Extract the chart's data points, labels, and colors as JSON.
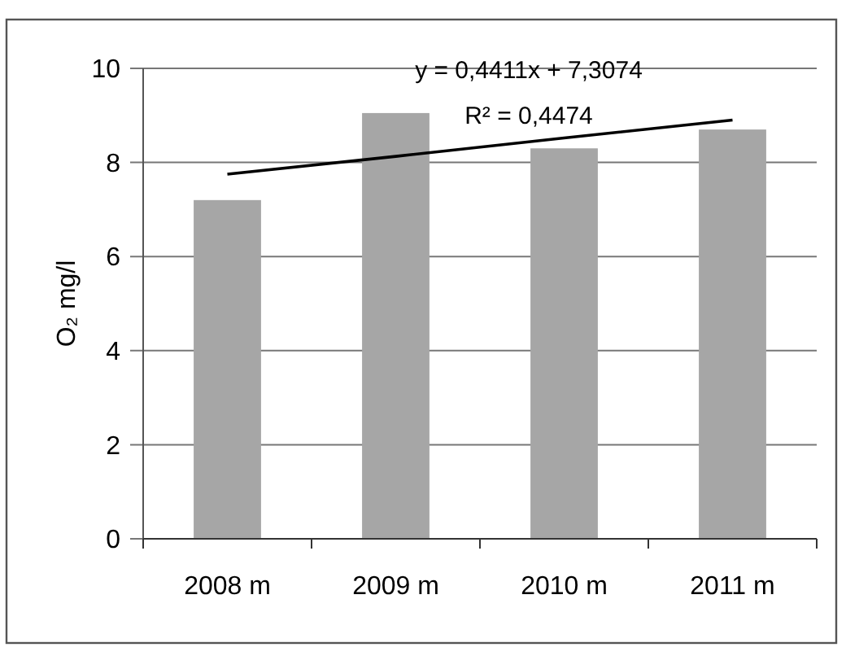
{
  "chart_data": {
    "type": "bar",
    "categories": [
      "2008 m",
      "2009 m",
      "2010 m",
      "2011 m"
    ],
    "ylabel": "O₂ mg/l",
    "ylim": [
      0,
      10
    ],
    "yticks": [
      0,
      2,
      4,
      6,
      8,
      10
    ],
    "grid": "y",
    "series": [
      {
        "color": "#a6a6a6",
        "values": [
          7.2,
          9.05,
          8.3,
          8.7
        ]
      },
      {
        "type": "line",
        "color": "#000000",
        "values": [
          7.75,
          8.13,
          8.52,
          8.9
        ]
      }
    ],
    "annotations": [
      "y = 0,4411x + 7,3074",
      "R² = 0,4474"
    ]
  }
}
